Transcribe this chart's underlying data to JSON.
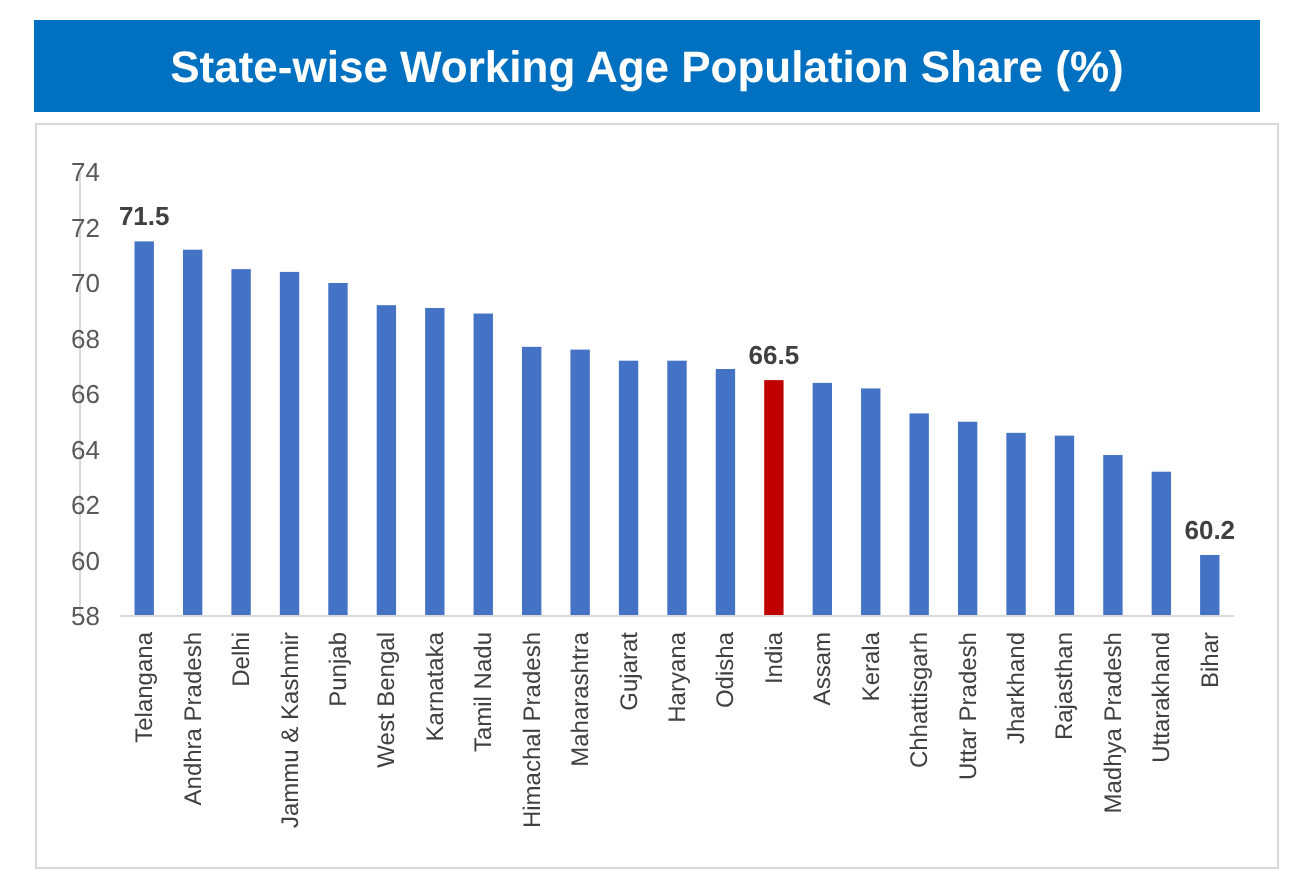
{
  "chart_data": {
    "type": "bar",
    "title": "State-wise Working Age Population Share (%)",
    "categories": [
      "Telangana",
      "Andhra Pradesh",
      "Delhi",
      "Jammu & Kashmir",
      "Punjab",
      "West Bengal",
      "Karnataka",
      "Tamil Nadu",
      "Himachal Pradesh",
      "Maharashtra",
      "Gujarat",
      "Haryana",
      "Odisha",
      "India",
      "Assam",
      "Kerala",
      "Chhattisgarh",
      "Uttar Pradesh",
      "Jharkhand",
      "Rajasthan",
      "Madhya Pradesh",
      "Uttarakhand",
      "Bihar"
    ],
    "values": [
      71.5,
      71.2,
      70.5,
      70.4,
      70.0,
      69.2,
      69.1,
      68.9,
      67.7,
      67.6,
      67.2,
      67.2,
      66.9,
      66.5,
      66.4,
      66.2,
      65.3,
      65.0,
      64.6,
      64.5,
      63.8,
      63.2,
      60.2
    ],
    "colors": [
      "#4472c4",
      "#4472c4",
      "#4472c4",
      "#4472c4",
      "#4472c4",
      "#4472c4",
      "#4472c4",
      "#4472c4",
      "#4472c4",
      "#4472c4",
      "#4472c4",
      "#4472c4",
      "#4472c4",
      "#c00000",
      "#4472c4",
      "#4472c4",
      "#4472c4",
      "#4472c4",
      "#4472c4",
      "#4472c4",
      "#4472c4",
      "#4472c4",
      "#4472c4"
    ],
    "value_labels": [
      "71.5",
      null,
      null,
      null,
      null,
      null,
      null,
      null,
      null,
      null,
      null,
      null,
      null,
      "66.5",
      null,
      null,
      null,
      null,
      null,
      null,
      null,
      null,
      "60.2"
    ],
    "ylim": [
      58,
      74
    ],
    "yticks": [
      58,
      60,
      62,
      64,
      66,
      68,
      70,
      72,
      74
    ],
    "grid": false
  }
}
